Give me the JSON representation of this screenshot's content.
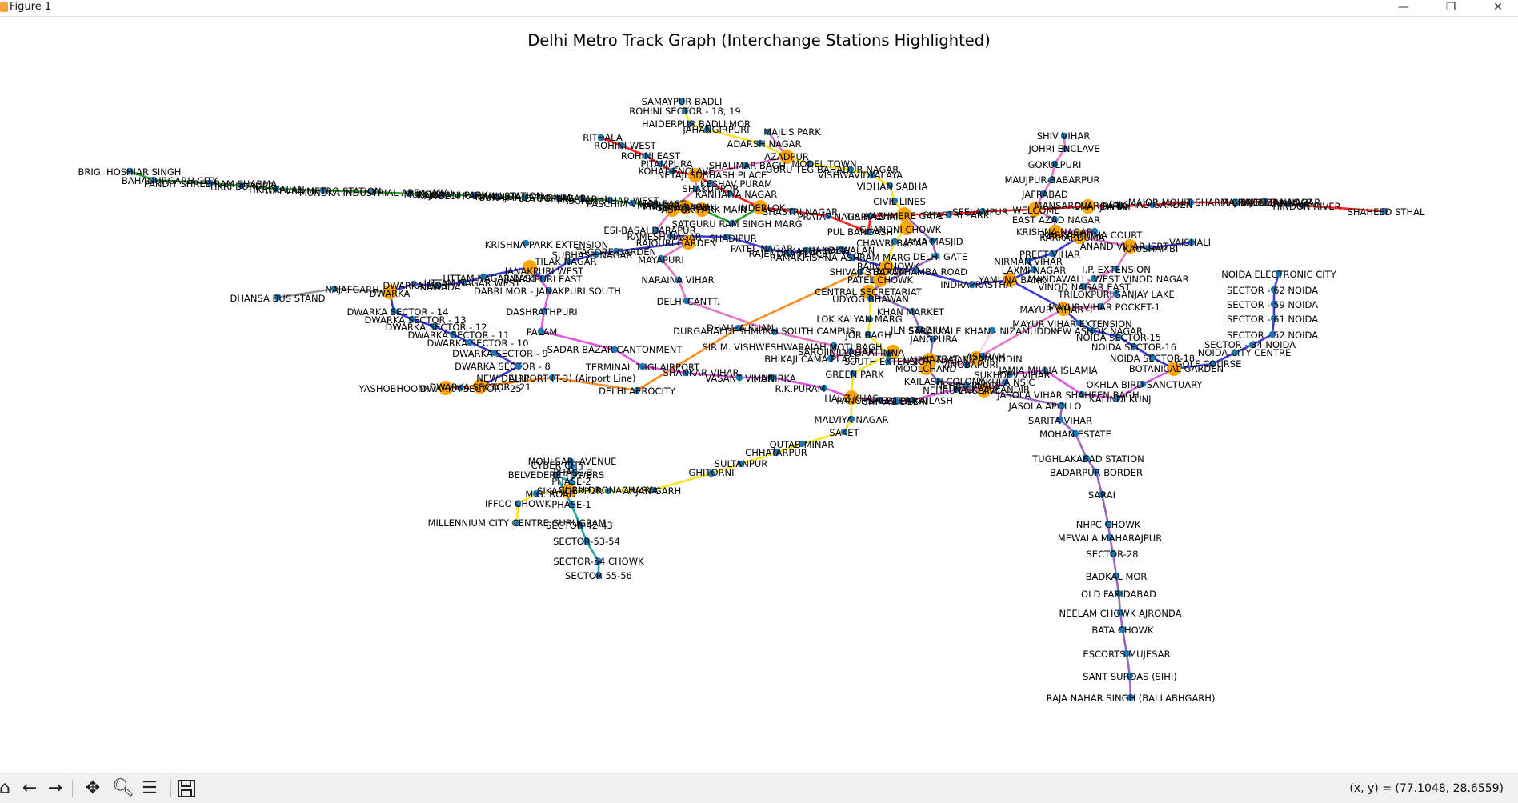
{
  "window": {
    "title": "Figure 1",
    "minimize": "—",
    "maximize": "❐",
    "close": "✕"
  },
  "figure": {
    "title": "Delhi Metro Track Graph (Interchange Stations Highlighted)"
  },
  "colors": {
    "node": "#1f77b4",
    "interchange": "#ffa500"
  },
  "toolbar": {
    "home_icon": "home-icon",
    "back_icon": "back-arrow-icon",
    "forward_icon": "forward-arrow-icon",
    "pan_icon": "pan-icon",
    "zoom_icon": "zoom-icon",
    "configure_icon": "configure-subplots-icon",
    "save_icon": "save-icon",
    "coords": "(x, y) = (77.1048, 28.6559)"
  },
  "labels": [
    "SAMAYPUR BADLI",
    "ROHINI SECTOR - 18, 19",
    "HAIDERPUR BADLI MOR",
    "JAHANGIRPURI",
    "MAJLIS PARK",
    "ADARSH NAGAR",
    "RITHALA",
    "ROHINI WEST",
    "ROHINI EAST",
    "AZADPUR",
    "PITAMPURA",
    "KOHAT ENCLAVE",
    "SHALIMAR BAGH",
    "MODEL TOWN",
    "GURU TEG BAHADUR NAGAR",
    "VISHWAVIDYALAYA",
    "NETAJI SUBHASH PLACE",
    "KESHAV PURAM",
    "SHAKURPUR",
    "VIDHAN SABHA",
    "KANHAIYA NAGAR",
    "CIVIL LINES",
    "INDERLOK",
    "SHASTRI NAGAR",
    "PRATAP NAGAR",
    "TIS HAZARI",
    "KASHMERE GATE",
    "SHASTRI PARK",
    "SEELAMPUR",
    "WELCOME",
    "SATGURU RAM SINGH MARG",
    "SHADIPUR",
    "PATEL NAGAR",
    "RAJENDRA PLACE",
    "KAROL BAGH",
    "JHANDEWALAN",
    "RAMAKRISHNA ASHRAM MARG",
    "CHANDNI CHOWK",
    "CHAWRI BAZAR",
    "JAMA MASJID",
    "DELHI GATE",
    "KRISHNA PARK EXTENSION",
    "ESI-BASAI DARAPUR",
    "RAMESH NAGAR",
    "SUBHASH NAGAR",
    "TAGORE GARDEN",
    "RAJOURI GARDEN",
    "TILAK NAGAR",
    "JANAKPURI WEST",
    "JANAKPURI EAST",
    "UTTAM NAGAR EAST",
    "UTTAM NAGAR WEST",
    "NAWADA",
    "MAYAPURI",
    "SHIVAJI STADIUM",
    "BARAKHAMBA ROAD",
    "RAJIV CHOWK",
    "PATEL CHOWK",
    "CENTRAL SECRETARIAT",
    "INDRAPRASTHA",
    "YAMUNA BANK",
    "LAXMI NAGAR",
    "NIRMAN VIHAR",
    "PREET VIHAR",
    "KARKARDUMA",
    "KARKARDUMA COURT",
    "ANAND VIHAR ISBT",
    "KAUSHAMBI",
    "VAISHALI",
    "SHIV VIHAR",
    "JOHRI ENCLAVE",
    "GOKULPURI",
    "MAUJPUR-BABARPUR",
    "JAFRABAD",
    "EAST AZAD NAGAR",
    "KRISHNA NAGAR",
    "I.P. EXTENSION",
    "MANDAWALI - WEST VINOD NAGAR",
    "VINOD NAGAR EAST",
    "TRILOKPURI SANJAY LAKE",
    "MAYUR VIHAR POCKET-1",
    "MAYUR VIHAR -I",
    "MAYUR VIHAR EXTENSION",
    "NEW ASHOK NAGAR",
    "NOIDA SECTOR-15",
    "NOIDA SECTOR-16",
    "NOIDA SECTOR-18",
    "BOTANICAL GARDEN",
    "GOLF COURSE",
    "NOIDA CITY CENTRE",
    "SECTOR - 34 NOIDA",
    "SECTOR - 52 NOIDA",
    "SECTOR - 61 NOIDA",
    "SECTOR - 59 NOIDA",
    "SECTOR - 62 NOIDA",
    "NOIDA ELECTRONIC CITY",
    "OKHLA BIRD SANCTUARY",
    "KALINDI KUNJ",
    "JASOLA VIHAR SHAHEEN BAGH",
    "JASOLA APOLLO",
    "SARITA VIHAR",
    "MOHAN ESTATE",
    "TUGHLAKABAD STATION",
    "BADARPUR BORDER",
    "SARAI",
    "NHPC CHOWK",
    "MEWALA MAHARAJPUR",
    "SECTOR-28",
    "BADKAL MOR",
    "OLD FARIDABAD",
    "NEELAM CHOWK AJRONDA",
    "BATA CHOWK",
    "ESCORTS MUJESAR",
    "SANT SURDAS (SIHI)",
    "RAJA NAHAR SINGH (BALLABHGARH)",
    "BRIG. HOSHIAR SINGH",
    "BAHADURGARH CITY",
    "PANDIT SHREE RAM SHARMA",
    "TIKRI BORDER",
    "TIKRI KALAN",
    "GHEVRA METRO STATION",
    "MUNDKA INDUSTRIAL AREA (MIA)",
    "MUNDKA",
    "RAJDHANI PARK",
    "NANGLOI RAILWAY STATION",
    "NANGLOI",
    "SURAJMAL STADIUM",
    "UDYOG NAGAR",
    "PEERA GARHI",
    "PASCHIM VIHAR WEST",
    "PASCHIM VIHAR EAST",
    "MADIPUR",
    "PUNJABI BAGH",
    "SHIVAJI PARK",
    "ASHOK PARK MAIN",
    "NAJAFGARH",
    "DHANSA BUS STAND",
    "DWARKA MOR",
    "DWARKA",
    "DWARKA SECTOR - 14",
    "DWARKA SECTOR - 13",
    "DWARKA SECTOR - 12",
    "DWARKA SECTOR - 11",
    "DWARKA SECTOR - 10",
    "DWARKA SECTOR - 9",
    "DWARKA SECTOR - 8",
    "DWARKA SECTOR - 21",
    "DWARKA SECTOR - 25",
    "YASHOBHOOMI",
    "DABRI MOR - JANAKPURI SOUTH",
    "DASHRATHPURI",
    "PALAM",
    "SADAR BAZAR CANTONMENT",
    "TERMINAL 1-IGI AIRPORT",
    "SHANKAR VIHAR",
    "VASANT VIHAR",
    "MUNIRKA",
    "R.K.PURAM",
    "NEW DELHI",
    "DELHI AEROCITY",
    "AIRPORT (T-3) (Airport Line)",
    "NARAINA VIHAR",
    "DELHI CANTT.",
    "DHAULA KUAN",
    "DURGABAI DESHMUKH SOUTH CAMPUS",
    "SIR M. VISHWESHWARAIAH MOTI BAGH",
    "BHIKAJI CAMA PLACE",
    "SAROJINI NAGAR",
    "INA",
    "DILLI HAAT - INA",
    "SOUTH EXTENSION",
    "LAJPAT NAGAR",
    "LOK KALYAN MARG",
    "UDYOG BHAWAN",
    "KHAN MARKET",
    "JLN STADIUM",
    "JANGPURA",
    "JOR BAGH",
    "HAZRAT NIZAMUDDIN",
    "SARAI KALE KHAN - NIZAMUDDIN",
    "ASHRAM",
    "VINOBAPURI",
    "MOOLCHAND",
    "KAILASH COLONY",
    "NEHRU PLACE",
    "NEHRU ENCLAVE",
    "GREATER KAILASH",
    "CHIRAG DELHI",
    "KALKAJI MANDIR",
    "OKHLA NSIC",
    "SUKHDEV VIHAR",
    "JAMIA MILLIA ISLAMIA",
    "GREEN PARK",
    "HAUZ KHAS",
    "PANCHSHEEL PARK",
    "MALVIYA NAGAR",
    "SAKET",
    "QUTAB MINAR",
    "CHHATARPUR",
    "SULTANPUR",
    "GHITORNI",
    "ARJAN GARH",
    "GURU DRONACHARYA",
    "SIKANDERPUR",
    "M.G. ROAD",
    "IFFCO CHOWK",
    "MOULSARI AVENUE",
    "CYBER CITY",
    "BELVEDERE TOWERS",
    "PHASE-3",
    "PHASE-2",
    "PHASE-1",
    "SECTOR-42-43",
    "MILLENNIUM CITY CENTRE GURUGRAM",
    "SECTOR-53-54",
    "SECTOR-54 CHOWK",
    "SECTOR 55-56",
    "MANSAROVAR PARK",
    "SHAHDARA",
    "JHILMIL",
    "DILSHAD GARDEN",
    "MAJOR MOHIT SHARMA RAJENDRA NAGAR",
    "RAJ BAGH",
    "SHAHEED NAGAR",
    "HINDON RIVER",
    "ARTHALA",
    "SHAHEED STHAL",
    "PUL BANGASH"
  ]
}
